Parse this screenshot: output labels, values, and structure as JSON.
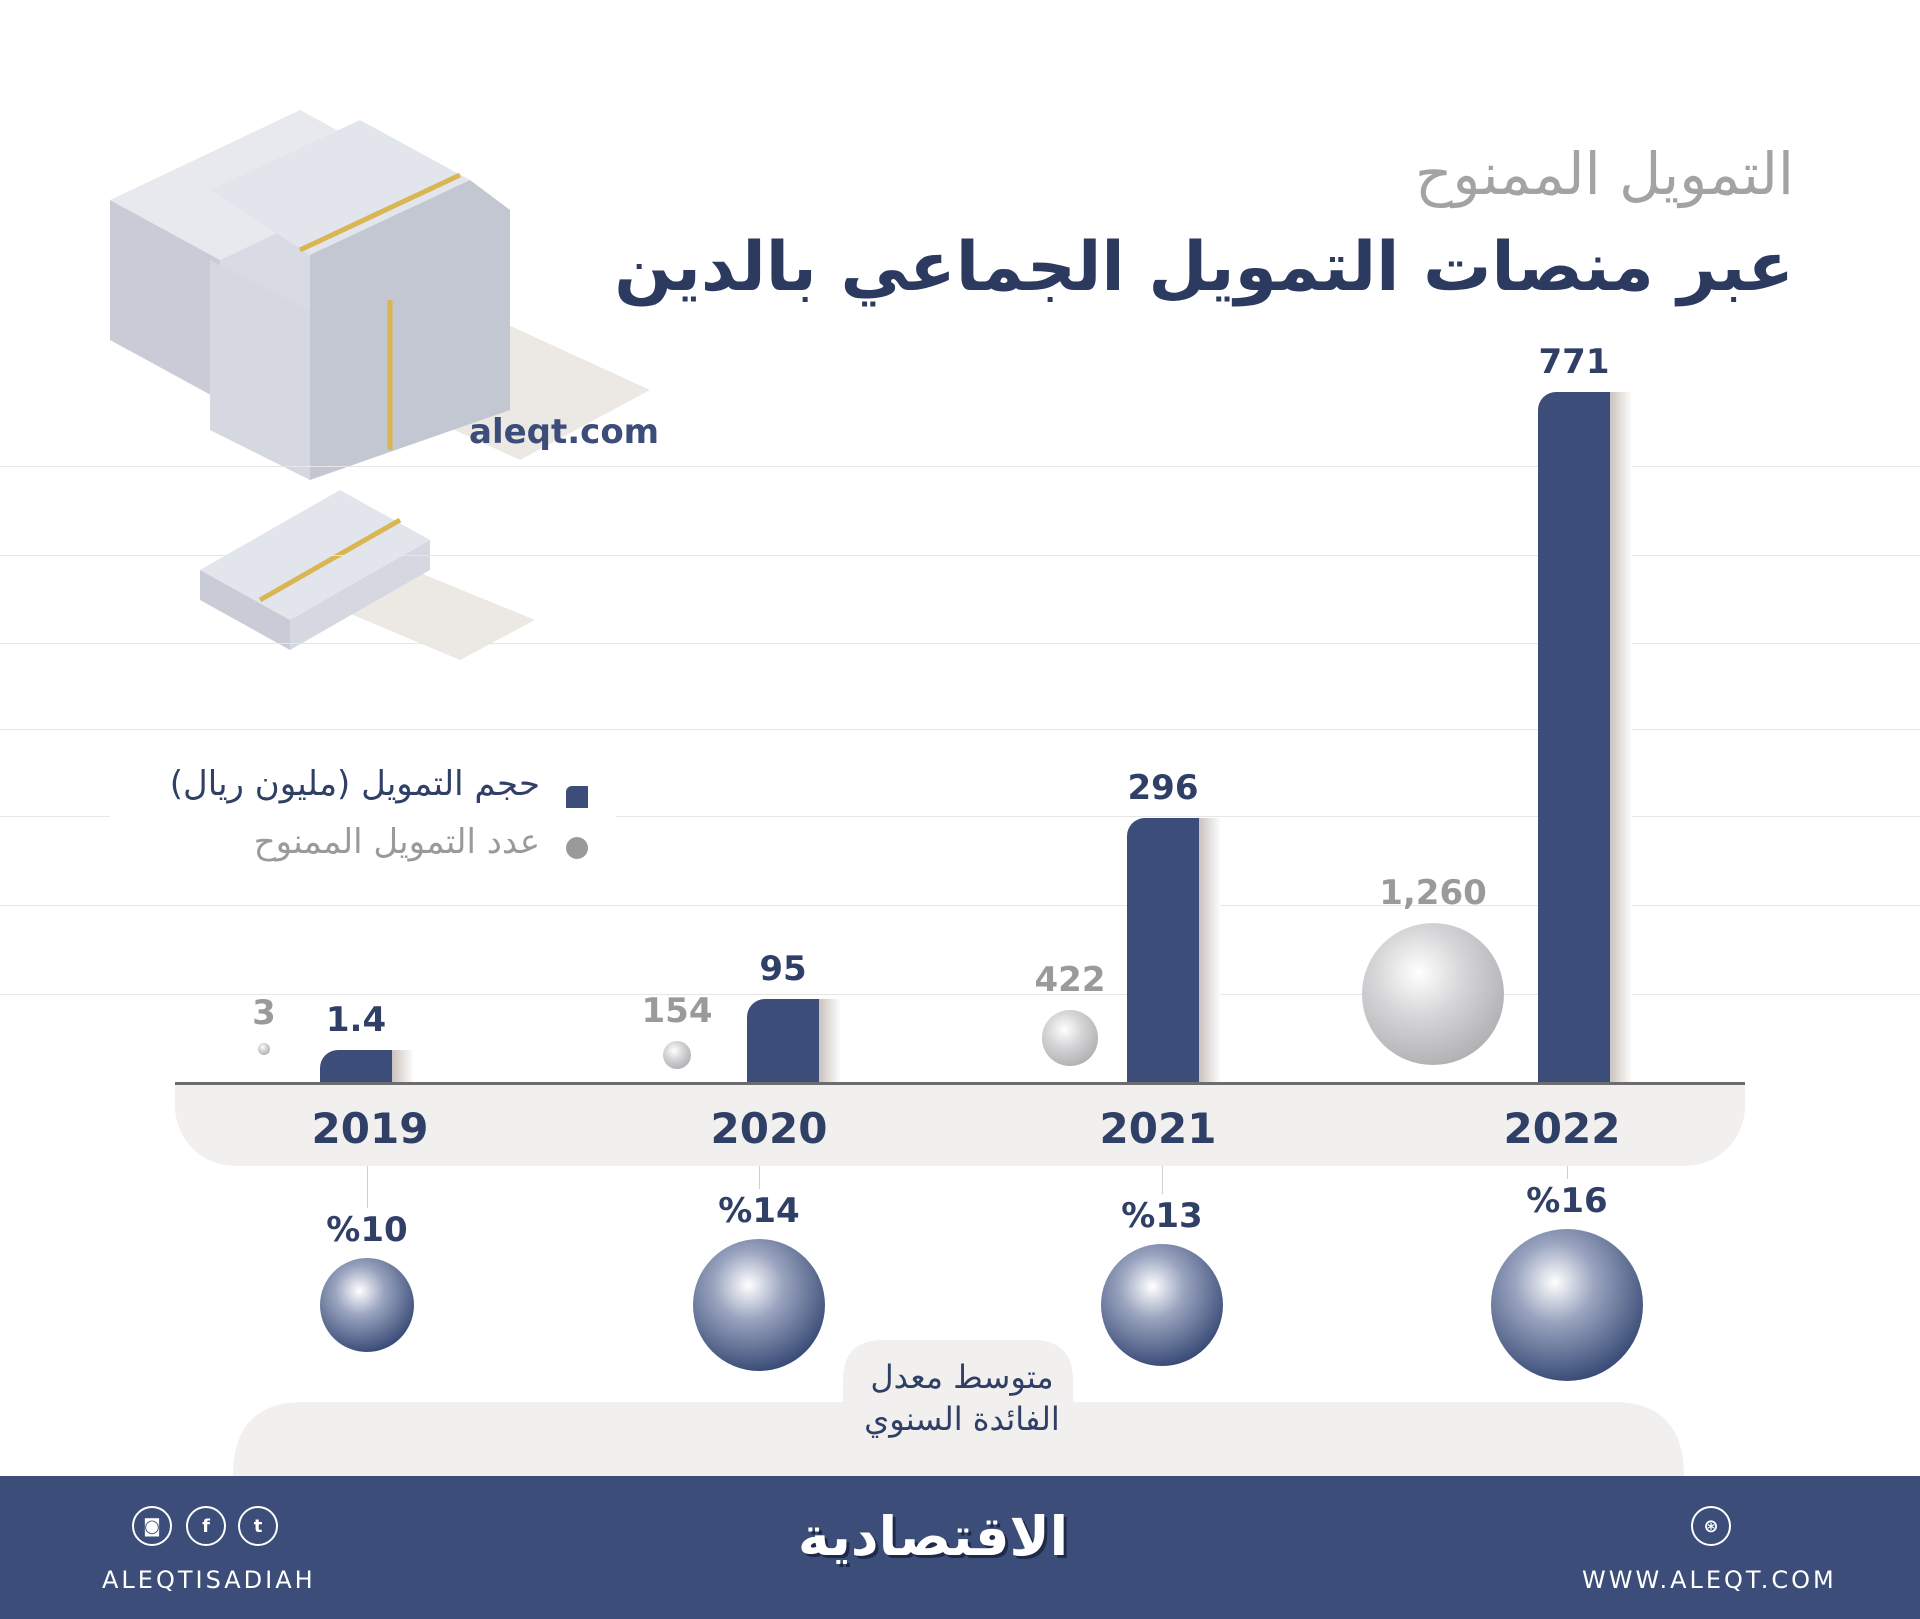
{
  "header": {
    "title_line1": "التمويل الممنوح",
    "title_line2": "عبر منصات التمويل الجماعي بالدين",
    "site": "aleqt.com"
  },
  "legend": {
    "items": [
      {
        "label": "حجم التمويل (مليون ريال)",
        "marker": "square",
        "color": "#3b4d78"
      },
      {
        "label": "عدد التمويل الممنوح",
        "marker": "circle",
        "color": "#9a9a9c"
      }
    ]
  },
  "chart_data": {
    "type": "bar",
    "categories": [
      "2019",
      "2020",
      "2021",
      "2022"
    ],
    "series": [
      {
        "name": "حجم التمويل (مليون ريال)",
        "type": "bar",
        "values": [
          1.4,
          95,
          296,
          771
        ],
        "labels": [
          "1.4",
          "95",
          "296",
          "771"
        ],
        "color": "#3b4d78"
      },
      {
        "name": "عدد التمويل الممنوح",
        "type": "bubble",
        "values": [
          3,
          154,
          422,
          1260
        ],
        "labels": [
          "3",
          "154",
          "422",
          "1,260"
        ],
        "color": "#9a9a9c"
      },
      {
        "name": "متوسط معدل الفائدة السنوي",
        "type": "bubble",
        "values": [
          10,
          14,
          13,
          16
        ],
        "labels": [
          "%10",
          "%14",
          "%13",
          "%16"
        ],
        "color": "#3b4d78"
      }
    ],
    "grid": true
  },
  "interest_note": {
    "line1": "متوسط معدل",
    "line2": "الفائدة السنوي"
  },
  "footer": {
    "logo": "الاقتصادية",
    "handle": "ALEQTISADIAH",
    "website": "WWW.ALEQT.COM",
    "social_icons": [
      "instagram-icon",
      "facebook-icon",
      "twitter-icon"
    ],
    "web_icon": "dribbble-icon",
    "color": "#3b4d78"
  }
}
